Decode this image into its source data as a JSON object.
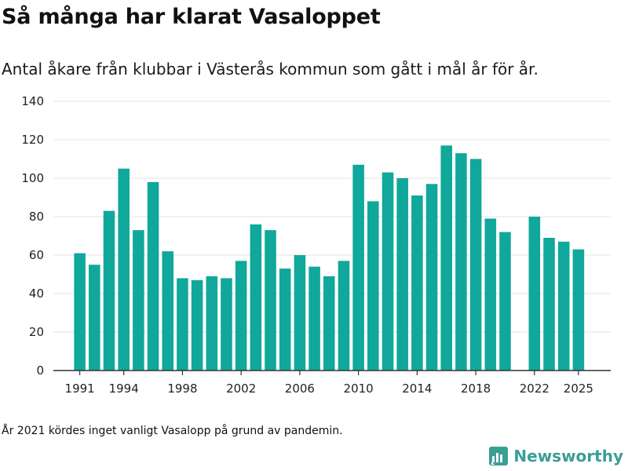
{
  "title": "Så många har klarat Vasaloppet",
  "subtitle": "Antal åkare från klubbar i Västerås kommun som gått i mål år för år.",
  "footnote": "År 2021 kördes inget vanligt Vasalopp på grund av pandemin.",
  "brand": {
    "name": "Newsworthy",
    "color": "#3a9e96"
  },
  "bar_color": "#10a89b",
  "chart_data": {
    "type": "bar",
    "title": "Så många har klarat Vasaloppet",
    "xlabel": "",
    "ylabel": "",
    "ylim": [
      0,
      140
    ],
    "yticks": [
      0,
      20,
      40,
      60,
      80,
      100,
      120,
      140
    ],
    "xticks": [
      "1991",
      "1994",
      "1998",
      "2002",
      "2006",
      "2010",
      "2014",
      "2018",
      "2022",
      "2025"
    ],
    "xrange": [
      1989.2,
      2027.2
    ],
    "grid": true,
    "categories": [
      1991,
      1992,
      1993,
      1994,
      1995,
      1996,
      1997,
      1998,
      1999,
      2000,
      2001,
      2002,
      2003,
      2004,
      2005,
      2006,
      2007,
      2008,
      2009,
      2010,
      2011,
      2012,
      2013,
      2014,
      2015,
      2016,
      2017,
      2018,
      2019,
      2020,
      2022,
      2023,
      2024,
      2025
    ],
    "values": [
      61,
      55,
      83,
      105,
      73,
      98,
      62,
      48,
      47,
      49,
      48,
      57,
      76,
      73,
      53,
      60,
      54,
      49,
      57,
      107,
      88,
      103,
      100,
      91,
      97,
      117,
      113,
      110,
      79,
      72,
      80,
      69,
      67,
      63
    ]
  }
}
